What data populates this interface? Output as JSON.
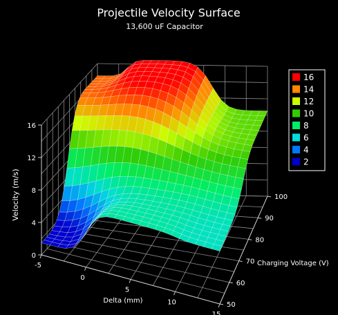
{
  "chart_data": {
    "type": "surface",
    "title": "Projectile Velocity Surface",
    "subtitle": "13,600 uF Capacitor",
    "xlabel": "Delta (mm)",
    "ylabel": "Charging Voltage (V)",
    "zlabel": "Velocity (m/s)",
    "x_ticks": [
      "-5",
      "0",
      "5",
      "10",
      "15"
    ],
    "y_ticks": [
      "50",
      "60",
      "70",
      "80",
      "90",
      "100"
    ],
    "z_ticks": [
      "0",
      "4",
      "8",
      "12",
      "16"
    ],
    "xlim": [
      -5,
      15
    ],
    "ylim": [
      50,
      100
    ],
    "zlim": [
      0,
      16
    ],
    "legend": {
      "placement": "right",
      "entries": [
        {
          "label": "16",
          "color": "#ff0000"
        },
        {
          "label": "14",
          "color": "#ff8800"
        },
        {
          "label": "12",
          "color": "#ccff00"
        },
        {
          "label": "10",
          "color": "#33cc00"
        },
        {
          "label": "8",
          "color": "#00ee66"
        },
        {
          "label": "6",
          "color": "#00dddd"
        },
        {
          "label": "4",
          "color": "#0077ff"
        },
        {
          "label": "2",
          "color": "#0000cc"
        }
      ]
    },
    "surface_samples": [
      {
        "delta": -5,
        "voltage": 50,
        "velocity": 1.5
      },
      {
        "delta": -5,
        "voltage": 100,
        "velocity": 14.5
      },
      {
        "delta": 2,
        "voltage": 100,
        "velocity": 16.5
      },
      {
        "delta": 15,
        "voltage": 100,
        "velocity": 10.5
      },
      {
        "delta": 15,
        "voltage": 50,
        "velocity": 6.5
      },
      {
        "delta": 5,
        "voltage": 50,
        "velocity": 7
      }
    ],
    "grid": true
  }
}
